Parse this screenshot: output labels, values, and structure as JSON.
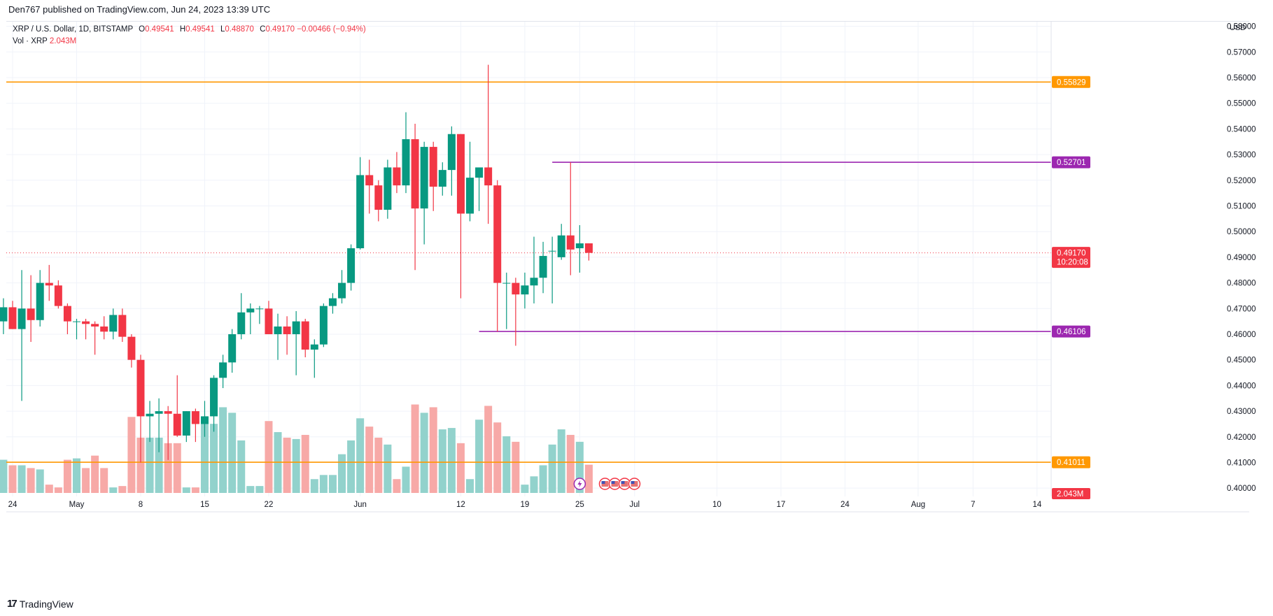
{
  "publisher": "Den767 published on TradingView.com, Jun 24, 2023 13:39 UTC",
  "legend": {
    "symbol": "XRP / U.S. Dollar, 1D, BITSTAMP",
    "open_label": "O",
    "open": "0.49541",
    "high_label": "H",
    "high": "0.49541",
    "low_label": "L",
    "low": "0.48870",
    "close_label": "C",
    "close": "0.49170",
    "change": "−0.00466 (−0.94%)",
    "volume_label": "Vol · XRP",
    "volume": "2.043M"
  },
  "brand": {
    "logo": "17",
    "name": "TradingView"
  },
  "chart_data": {
    "type": "candlestick",
    "currency_label": "USD",
    "y_ticks": [
      "0.40000",
      "0.41000",
      "0.42000",
      "0.43000",
      "0.44000",
      "0.45000",
      "0.46000",
      "0.47000",
      "0.48000",
      "0.49000",
      "0.50000",
      "0.51000",
      "0.52000",
      "0.53000",
      "0.54000",
      "0.55000",
      "0.56000",
      "0.57000",
      "0.58000"
    ],
    "ylim": [
      0.3995,
      0.5818
    ],
    "x_ticks": [
      {
        "date": "2023-04-24",
        "label": "24"
      },
      {
        "date": "2023-05-01",
        "label": "May"
      },
      {
        "date": "2023-05-08",
        "label": "8"
      },
      {
        "date": "2023-05-15",
        "label": "15"
      },
      {
        "date": "2023-05-22",
        "label": "22"
      },
      {
        "date": "2023-06-01",
        "label": "Jun"
      },
      {
        "date": "2023-06-12",
        "label": "12"
      },
      {
        "date": "2023-06-19",
        "label": "19"
      },
      {
        "date": "2023-06-25",
        "label": "25"
      },
      {
        "date": "2023-07-01",
        "label": "Jul"
      },
      {
        "date": "2023-07-10",
        "label": "10"
      },
      {
        "date": "2023-07-17",
        "label": "17"
      },
      {
        "date": "2023-07-24",
        "label": "24"
      },
      {
        "date": "2023-08-01",
        "label": "Aug"
      },
      {
        "date": "2023-08-07",
        "label": "7"
      },
      {
        "date": "2023-08-14",
        "label": "14"
      }
    ],
    "horizontal_levels": [
      {
        "value": 0.55829,
        "label": "0.55829",
        "color": "#ff9800"
      },
      {
        "value": 0.41011,
        "label": "0.41011",
        "color": "#ff9800"
      }
    ],
    "marker_lines": [
      {
        "value": 0.52701,
        "label": "0.52701",
        "color": "#9c27b0",
        "from_date": "2023-06-22"
      },
      {
        "value": 0.46106,
        "label": "0.46106",
        "color": "#9c27b0",
        "from_date": "2023-06-14"
      }
    ],
    "last_price": {
      "value": 0.4917,
      "label": "0.49170",
      "countdown": "10:20:08",
      "color": "#f23645"
    },
    "last_volume_label": "2.043M",
    "volume_max": 4.4,
    "colors": {
      "up": "#089981",
      "down": "#f23645",
      "vol_up": "#92d2cc",
      "vol_down": "#f7a9a7"
    },
    "candles": [
      {
        "date": "2023-04-22",
        "o": 0.4737,
        "h": 0.48,
        "l": 0.464,
        "c": 0.465,
        "v": 2.5
      },
      {
        "date": "2023-04-23",
        "o": 0.465,
        "h": 0.474,
        "l": 0.46,
        "c": 0.4705,
        "v": 2.4
      },
      {
        "date": "2023-04-24",
        "o": 0.4705,
        "h": 0.473,
        "l": 0.462,
        "c": 0.462,
        "v": 2.0
      },
      {
        "date": "2023-04-25",
        "o": 0.462,
        "h": 0.485,
        "l": 0.434,
        "c": 0.47,
        "v": 2.0
      },
      {
        "date": "2023-04-26",
        "o": 0.47,
        "h": 0.483,
        "l": 0.457,
        "c": 0.4655,
        "v": 1.8
      },
      {
        "date": "2023-04-27",
        "o": 0.4655,
        "h": 0.485,
        "l": 0.463,
        "c": 0.48,
        "v": 1.7
      },
      {
        "date": "2023-04-28",
        "o": 0.48,
        "h": 0.487,
        "l": 0.473,
        "c": 0.479,
        "v": 0.6
      },
      {
        "date": "2023-04-29",
        "o": 0.479,
        "h": 0.481,
        "l": 0.47,
        "c": 0.471,
        "v": 0.4
      },
      {
        "date": "2023-04-30",
        "o": 0.471,
        "h": 0.472,
        "l": 0.46,
        "c": 0.465,
        "v": 2.4
      },
      {
        "date": "2023-05-01",
        "o": 0.465,
        "h": 0.466,
        "l": 0.458,
        "c": 0.465,
        "v": 2.5
      },
      {
        "date": "2023-05-02",
        "o": 0.465,
        "h": 0.466,
        "l": 0.458,
        "c": 0.464,
        "v": 1.8
      },
      {
        "date": "2023-05-03",
        "o": 0.464,
        "h": 0.465,
        "l": 0.452,
        "c": 0.463,
        "v": 2.7
      },
      {
        "date": "2023-05-04",
        "o": 0.463,
        "h": 0.467,
        "l": 0.458,
        "c": 0.461,
        "v": 1.8
      },
      {
        "date": "2023-05-05",
        "o": 0.461,
        "h": 0.47,
        "l": 0.458,
        "c": 0.4675,
        "v": 0.4
      },
      {
        "date": "2023-05-06",
        "o": 0.4675,
        "h": 0.47,
        "l": 0.457,
        "c": 0.459,
        "v": 0.5
      },
      {
        "date": "2023-05-07",
        "o": 0.459,
        "h": 0.46,
        "l": 0.447,
        "c": 0.45,
        "v": 5.5
      },
      {
        "date": "2023-05-08",
        "o": 0.45,
        "h": 0.452,
        "l": 0.41,
        "c": 0.428,
        "v": 4.0
      },
      {
        "date": "2023-05-09",
        "o": 0.428,
        "h": 0.434,
        "l": 0.418,
        "c": 0.429,
        "v": 4.0
      },
      {
        "date": "2023-05-10",
        "o": 0.429,
        "h": 0.435,
        "l": 0.414,
        "c": 0.43,
        "v": 4.0
      },
      {
        "date": "2023-05-11",
        "o": 0.43,
        "h": 0.432,
        "l": 0.411,
        "c": 0.429,
        "v": 3.6
      },
      {
        "date": "2023-05-12",
        "o": 0.429,
        "h": 0.444,
        "l": 0.42,
        "c": 0.4205,
        "v": 3.6
      },
      {
        "date": "2023-05-13",
        "o": 0.4205,
        "h": 0.43,
        "l": 0.418,
        "c": 0.43,
        "v": 0.4
      },
      {
        "date": "2023-05-14",
        "o": 0.43,
        "h": 0.431,
        "l": 0.418,
        "c": 0.425,
        "v": 0.4
      },
      {
        "date": "2023-05-15",
        "o": 0.425,
        "h": 0.434,
        "l": 0.42,
        "c": 0.428,
        "v": 5.0
      },
      {
        "date": "2023-05-16",
        "o": 0.428,
        "h": 0.444,
        "l": 0.422,
        "c": 0.443,
        "v": 5.0
      },
      {
        "date": "2023-05-17",
        "o": 0.443,
        "h": 0.452,
        "l": 0.439,
        "c": 0.449,
        "v": 6.2
      },
      {
        "date": "2023-05-18",
        "o": 0.449,
        "h": 0.462,
        "l": 0.445,
        "c": 0.46,
        "v": 5.8
      },
      {
        "date": "2023-05-19",
        "o": 0.46,
        "h": 0.476,
        "l": 0.458,
        "c": 0.4685,
        "v": 3.8
      },
      {
        "date": "2023-05-20",
        "o": 0.4685,
        "h": 0.472,
        "l": 0.46,
        "c": 0.47,
        "v": 0.5
      },
      {
        "date": "2023-05-21",
        "o": 0.47,
        "h": 0.471,
        "l": 0.464,
        "c": 0.47,
        "v": 0.5
      },
      {
        "date": "2023-05-22",
        "o": 0.47,
        "h": 0.473,
        "l": 0.46,
        "c": 0.46,
        "v": 5.2
      },
      {
        "date": "2023-05-23",
        "o": 0.46,
        "h": 0.468,
        "l": 0.45,
        "c": 0.463,
        "v": 4.4
      },
      {
        "date": "2023-05-24",
        "o": 0.463,
        "h": 0.467,
        "l": 0.452,
        "c": 0.46,
        "v": 4.0
      },
      {
        "date": "2023-05-25",
        "o": 0.46,
        "h": 0.469,
        "l": 0.444,
        "c": 0.465,
        "v": 3.9
      },
      {
        "date": "2023-05-26",
        "o": 0.465,
        "h": 0.466,
        "l": 0.451,
        "c": 0.454,
        "v": 4.2
      },
      {
        "date": "2023-05-27",
        "o": 0.454,
        "h": 0.458,
        "l": 0.443,
        "c": 0.456,
        "v": 1.0
      },
      {
        "date": "2023-05-28",
        "o": 0.456,
        "h": 0.472,
        "l": 0.455,
        "c": 0.471,
        "v": 1.3
      },
      {
        "date": "2023-05-29",
        "o": 0.471,
        "h": 0.476,
        "l": 0.468,
        "c": 0.474,
        "v": 1.3
      },
      {
        "date": "2023-05-30",
        "o": 0.474,
        "h": 0.485,
        "l": 0.472,
        "c": 0.48,
        "v": 2.8
      },
      {
        "date": "2023-05-31",
        "o": 0.48,
        "h": 0.495,
        "l": 0.477,
        "c": 0.4935,
        "v": 3.8
      },
      {
        "date": "2023-06-01",
        "o": 0.4935,
        "h": 0.529,
        "l": 0.493,
        "c": 0.522,
        "v": 5.4
      },
      {
        "date": "2023-06-02",
        "o": 0.522,
        "h": 0.528,
        "l": 0.507,
        "c": 0.518,
        "v": 4.8
      },
      {
        "date": "2023-06-03",
        "o": 0.518,
        "h": 0.52,
        "l": 0.504,
        "c": 0.5085,
        "v": 4.0
      },
      {
        "date": "2023-06-04",
        "o": 0.5085,
        "h": 0.528,
        "l": 0.505,
        "c": 0.525,
        "v": 3.5
      },
      {
        "date": "2023-06-05",
        "o": 0.525,
        "h": 0.531,
        "l": 0.515,
        "c": 0.518,
        "v": 1.0
      },
      {
        "date": "2023-06-06",
        "o": 0.518,
        "h": 0.5465,
        "l": 0.515,
        "c": 0.536,
        "v": 1.9
      },
      {
        "date": "2023-06-07",
        "o": 0.536,
        "h": 0.542,
        "l": 0.485,
        "c": 0.509,
        "v": 6.4
      },
      {
        "date": "2023-06-08",
        "o": 0.509,
        "h": 0.535,
        "l": 0.495,
        "c": 0.533,
        "v": 5.8
      },
      {
        "date": "2023-06-09",
        "o": 0.533,
        "h": 0.535,
        "l": 0.508,
        "c": 0.5175,
        "v": 6.2
      },
      {
        "date": "2023-06-10",
        "o": 0.5175,
        "h": 0.527,
        "l": 0.514,
        "c": 0.524,
        "v": 4.6
      },
      {
        "date": "2023-06-11",
        "o": 0.524,
        "h": 0.541,
        "l": 0.514,
        "c": 0.538,
        "v": 4.7
      },
      {
        "date": "2023-06-12",
        "o": 0.538,
        "h": 0.538,
        "l": 0.474,
        "c": 0.507,
        "v": 3.6
      },
      {
        "date": "2023-06-13",
        "o": 0.507,
        "h": 0.535,
        "l": 0.504,
        "c": 0.521,
        "v": 1.0
      },
      {
        "date": "2023-06-14",
        "o": 0.521,
        "h": 0.524,
        "l": 0.508,
        "c": 0.525,
        "v": 5.3
      },
      {
        "date": "2023-06-15",
        "o": 0.525,
        "h": 0.565,
        "l": 0.503,
        "c": 0.518,
        "v": 6.3
      },
      {
        "date": "2023-06-16",
        "o": 0.518,
        "h": 0.52,
        "l": 0.461,
        "c": 0.48,
        "v": 5.1
      },
      {
        "date": "2023-06-17",
        "o": 0.48,
        "h": 0.484,
        "l": 0.462,
        "c": 0.48,
        "v": 4.1
      },
      {
        "date": "2023-06-18",
        "o": 0.48,
        "h": 0.482,
        "l": 0.4555,
        "c": 0.4755,
        "v": 3.7
      },
      {
        "date": "2023-06-19",
        "o": 0.4755,
        "h": 0.484,
        "l": 0.47,
        "c": 0.479,
        "v": 0.6
      },
      {
        "date": "2023-06-20",
        "o": 0.479,
        "h": 0.498,
        "l": 0.472,
        "c": 0.482,
        "v": 1.2
      },
      {
        "date": "2023-06-21",
        "o": 0.482,
        "h": 0.496,
        "l": 0.476,
        "c": 0.4905,
        "v": 2.0
      },
      {
        "date": "2023-06-22",
        "o": 0.4925,
        "h": 0.498,
        "l": 0.472,
        "c": 0.4925,
        "v": 3.5
      },
      {
        "date": "2023-06-23",
        "o": 0.49,
        "h": 0.503,
        "l": 0.489,
        "c": 0.4985,
        "v": 4.6
      },
      {
        "date": "2023-06-24",
        "o": 0.4985,
        "h": 0.527,
        "l": 0.483,
        "c": 0.493,
        "v": 4.2
      },
      {
        "date": "2023-06-25",
        "o": 0.4935,
        "h": 0.5025,
        "l": 0.484,
        "c": 0.4954,
        "v": 3.7
      },
      {
        "date": "2023-06-26",
        "o": 0.49541,
        "h": 0.49541,
        "l": 0.4887,
        "c": 0.4917,
        "v": 2.043
      }
    ]
  }
}
